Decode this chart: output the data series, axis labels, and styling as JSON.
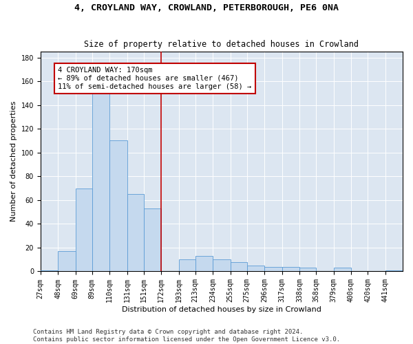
{
  "title": "4, CROYLAND WAY, CROWLAND, PETERBOROUGH, PE6 0NA",
  "subtitle": "Size of property relative to detached houses in Crowland",
  "xlabel": "Distribution of detached houses by size in Crowland",
  "ylabel": "Number of detached properties",
  "bins": [
    "27sqm",
    "48sqm",
    "69sqm",
    "89sqm",
    "110sqm",
    "131sqm",
    "151sqm",
    "172sqm",
    "193sqm",
    "213sqm",
    "234sqm",
    "255sqm",
    "275sqm",
    "296sqm",
    "317sqm",
    "338sqm",
    "358sqm",
    "379sqm",
    "400sqm",
    "420sqm",
    "441sqm"
  ],
  "bin_edges": [
    27,
    48,
    69,
    89,
    110,
    131,
    151,
    172,
    193,
    213,
    234,
    255,
    275,
    296,
    317,
    338,
    358,
    379,
    400,
    420,
    441,
    462
  ],
  "values": [
    1,
    17,
    70,
    150,
    110,
    65,
    53,
    0,
    10,
    13,
    10,
    8,
    5,
    4,
    4,
    3,
    0,
    3,
    0,
    0,
    1
  ],
  "bar_color": "#c5d9ee",
  "bar_edge_color": "#5b9bd5",
  "vline_x": 172,
  "vline_color": "#c00000",
  "annotation_text": "4 CROYLAND WAY: 170sqm\n← 89% of detached houses are smaller (467)\n11% of semi-detached houses are larger (58) →",
  "annotation_box_color": "#ffffff",
  "annotation_box_edge": "#c00000",
  "annotation_fontsize": 7.5,
  "title_fontsize": 9.5,
  "subtitle_fontsize": 8.5,
  "xlabel_fontsize": 8,
  "ylabel_fontsize": 8,
  "tick_fontsize": 7,
  "ylim": [
    0,
    185
  ],
  "yticks": [
    0,
    20,
    40,
    60,
    80,
    100,
    120,
    140,
    160,
    180
  ],
  "background_color": "#dce6f1",
  "footer": "Contains HM Land Registry data © Crown copyright and database right 2024.\nContains public sector information licensed under the Open Government Licence v3.0.",
  "footer_fontsize": 6.5
}
